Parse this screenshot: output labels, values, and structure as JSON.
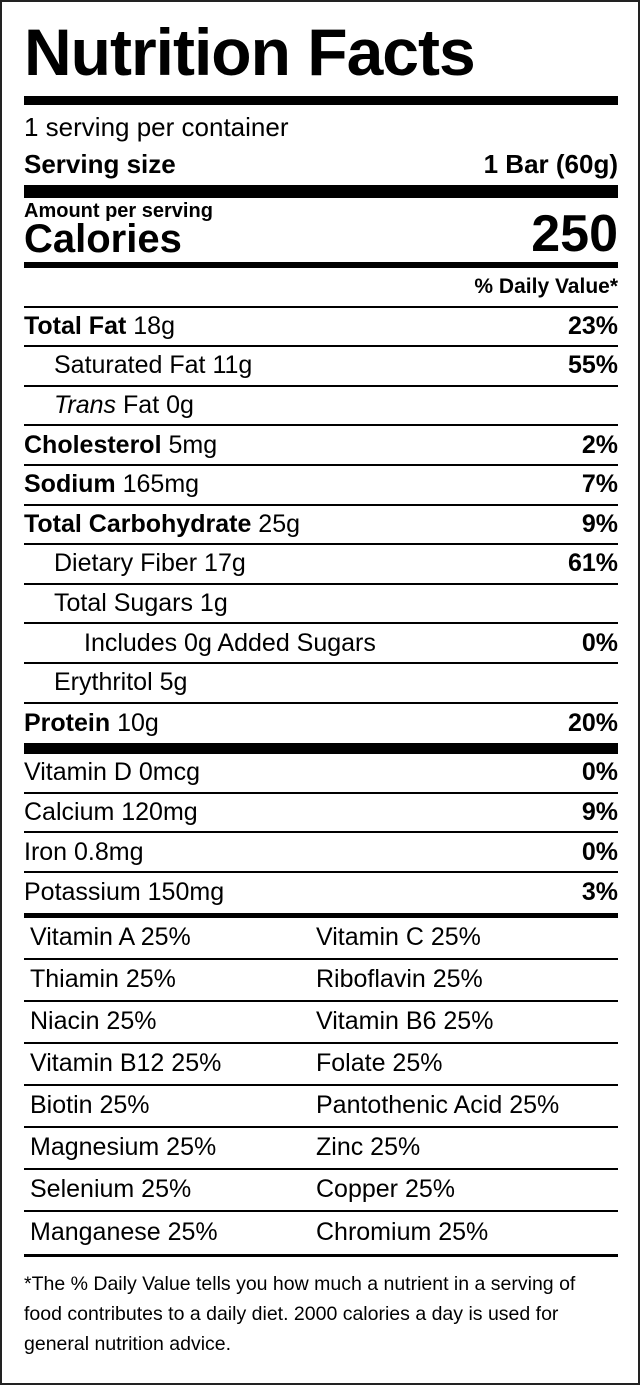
{
  "title": "Nutrition Facts",
  "servings_per_container": "1 serving per container",
  "serving_size": {
    "label": "Serving size",
    "value": "1 Bar (60g)"
  },
  "amount_per_serving": "Amount per serving",
  "calories": {
    "label": "Calories",
    "value": "250"
  },
  "daily_value_header": "% Daily Value*",
  "nutrients": [
    {
      "name": "Total Fat",
      "amount": "18g",
      "daily_value": "23%"
    },
    {
      "name": "Saturated Fat",
      "amount": "11g",
      "daily_value": "55%"
    },
    {
      "name": "Trans",
      "amount": "Fat 0g"
    },
    {
      "name": "Cholesterol",
      "amount": "5mg",
      "daily_value": "2%"
    },
    {
      "name": "Sodium",
      "amount": "165mg",
      "daily_value": "7%"
    },
    {
      "name": "Total Carbohydrate",
      "amount": "25g",
      "daily_value": "9%"
    },
    {
      "name": "Dietary Fiber",
      "amount": "17g",
      "daily_value": "61%"
    },
    {
      "name": "Total Sugars",
      "amount": "1g"
    },
    {
      "name": "Includes 0g Added Sugars",
      "daily_value": "0%"
    },
    {
      "name": "Erythritol",
      "amount": "5g"
    },
    {
      "name": "Protein",
      "amount": "10g",
      "daily_value": "20%"
    }
  ],
  "vitamins": [
    {
      "name": "Vitamin D 0mcg",
      "daily_value": "0%"
    },
    {
      "name": "Calcium 120mg",
      "daily_value": "9%"
    },
    {
      "name": "Iron 0.8mg",
      "daily_value": "0%"
    },
    {
      "name": "Potassium 150mg",
      "daily_value": "3%"
    }
  ],
  "micronutrients": [
    [
      "Vitamin A 25%",
      "Vitamin C 25%"
    ],
    [
      "Thiamin 25%",
      "Riboflavin 25%"
    ],
    [
      "Niacin 25%",
      "Vitamin B6 25%"
    ],
    [
      "Vitamin B12 25%",
      "Folate 25%"
    ],
    [
      "Biotin 25%",
      "Pantothenic Acid 25%"
    ],
    [
      "Magnesium 25%",
      "Zinc 25%"
    ],
    [
      "Selenium 25%",
      "Copper 25%"
    ],
    [
      "Manganese 25%",
      "Chromium 25%"
    ]
  ],
  "footnote": "*The % Daily Value tells you how much a nutrient in a serving of food contributes to a daily diet. 2000 calories a day is used for general nutrition advice."
}
